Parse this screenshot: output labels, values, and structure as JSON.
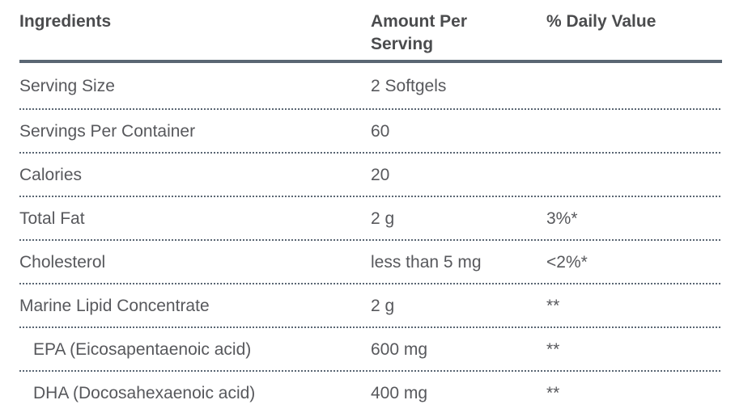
{
  "table": {
    "columns": [
      {
        "label": "Ingredients"
      },
      {
        "label": "Amount Per Serving"
      },
      {
        "label": "% Daily Value"
      }
    ],
    "rows": [
      {
        "ingredient": "Serving Size",
        "amount": "2 Softgels",
        "daily_value": "",
        "indent": false
      },
      {
        "ingredient": "Servings Per Container",
        "amount": "60",
        "daily_value": "",
        "indent": false
      },
      {
        "ingredient": "Calories",
        "amount": "20",
        "daily_value": "",
        "indent": false
      },
      {
        "ingredient": "Total Fat",
        "amount": "2 g",
        "daily_value": "3%*",
        "indent": false
      },
      {
        "ingredient": "Cholesterol",
        "amount": "less than 5 mg",
        "daily_value": "<2%*",
        "indent": false
      },
      {
        "ingredient": "Marine Lipid Concentrate",
        "amount": "2 g",
        "daily_value": "**",
        "indent": false
      },
      {
        "ingredient": "EPA (Eicosapentaenoic acid)",
        "amount": "600 mg",
        "daily_value": "**",
        "indent": true
      },
      {
        "ingredient": "DHA (Docosahexaenoic acid)",
        "amount": "400 mg",
        "daily_value": "**",
        "indent": true
      }
    ],
    "colors": {
      "rule": "#5a6673",
      "header_text": "#4b4c4e",
      "body_text": "#57585c"
    }
  }
}
